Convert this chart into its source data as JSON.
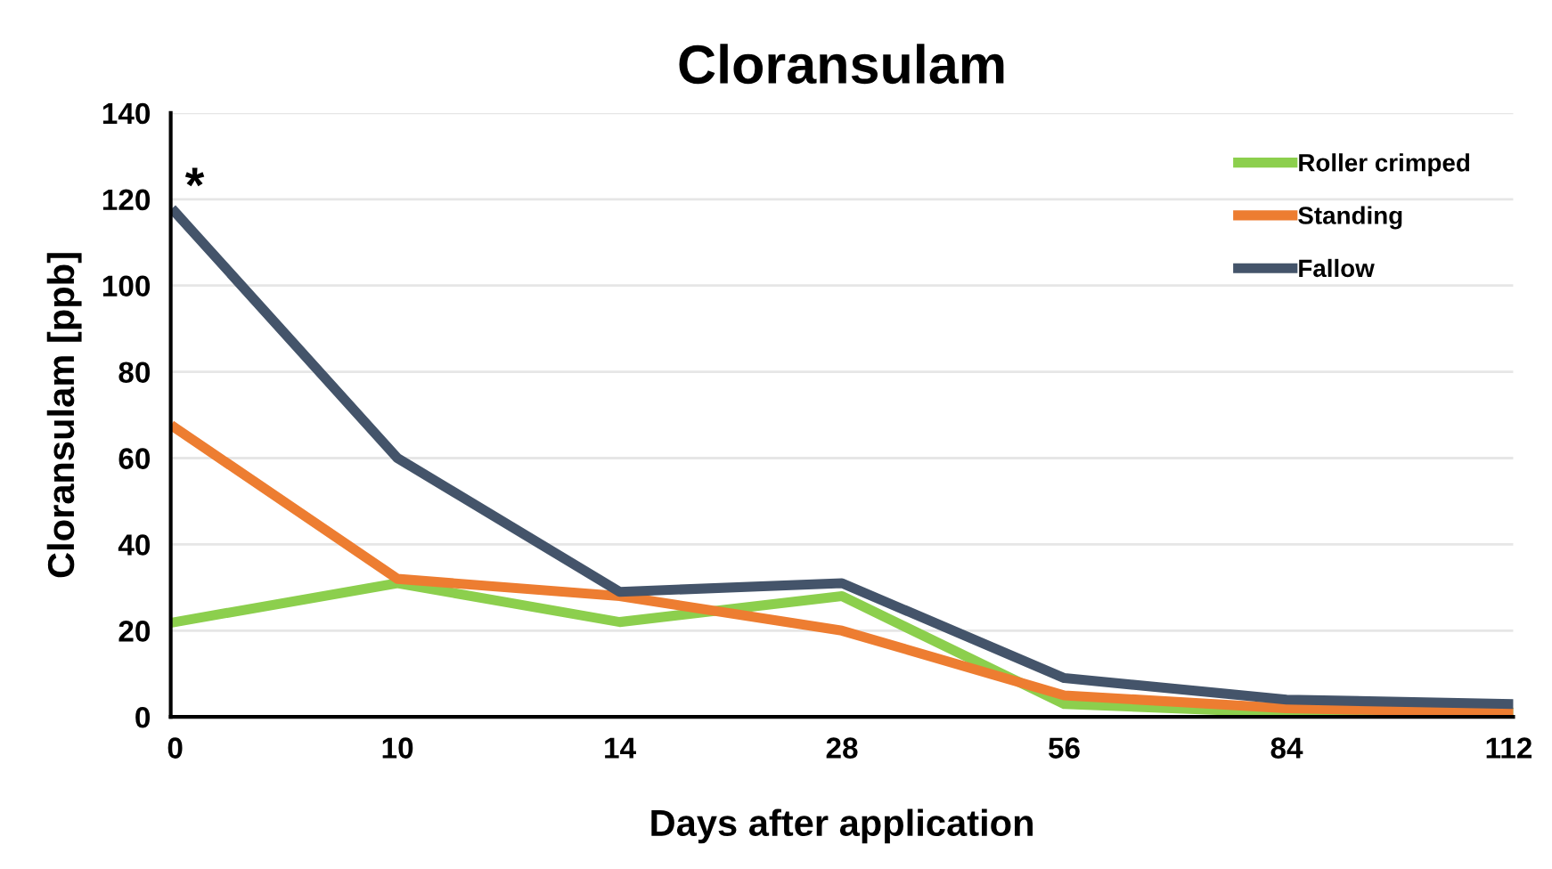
{
  "chart_data": {
    "type": "line",
    "title": "Cloransulam",
    "xlabel": "Days after application",
    "ylabel": "Cloransulam [ppb]",
    "categories": [
      "0",
      "10",
      "14",
      "28",
      "56",
      "84",
      "112"
    ],
    "series": [
      {
        "name": "Roller crimped",
        "color": "#8ccf4d",
        "values": [
          22,
          31,
          22,
          28,
          3,
          1,
          1
        ]
      },
      {
        "name": "Standing",
        "color": "#ed7d31",
        "values": [
          67,
          32,
          28,
          20,
          5,
          2,
          1
        ]
      },
      {
        "name": "Fallow",
        "color": "#44546a",
        "values": [
          117,
          60,
          29,
          31,
          9,
          4,
          3
        ]
      }
    ],
    "ylim": [
      0,
      140
    ],
    "yticks": [
      0,
      20,
      40,
      60,
      80,
      100,
      120,
      140
    ],
    "grid": "y",
    "legend": "top right",
    "marker": "none",
    "line_style": "solid",
    "annotations": [
      {
        "text": "*",
        "x": "0",
        "y": 117
      }
    ]
  }
}
